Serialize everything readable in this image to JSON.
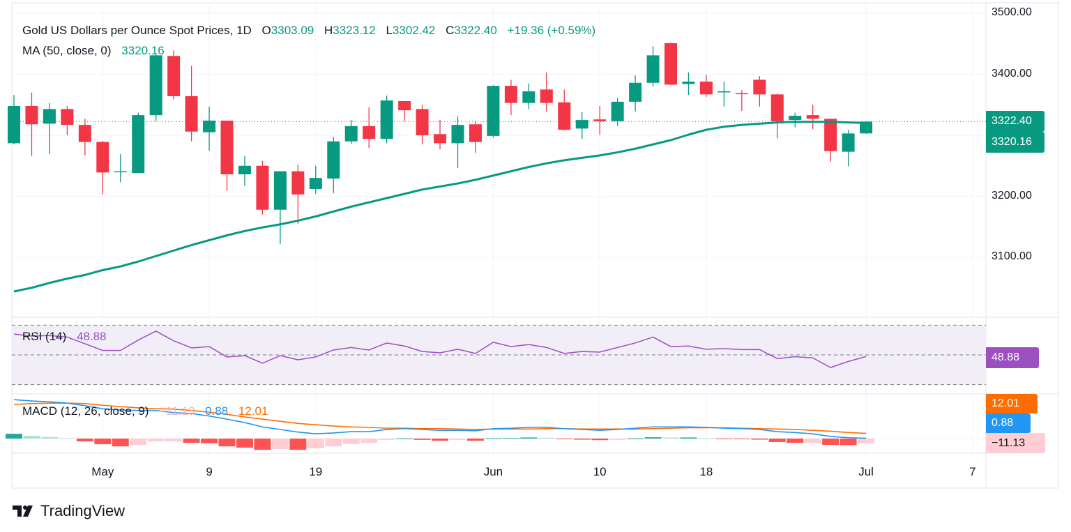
{
  "header": {
    "title": "Gold US Dollars per Ounce Spot Prices, 1D",
    "o_label": "O",
    "o_value": "3303.09",
    "h_label": "H",
    "h_value": "3323.12",
    "l_label": "L",
    "l_value": "3302.42",
    "c_label": "C",
    "c_value": "3322.40",
    "change": "+19.36 (+0.59%)",
    "ma_label": "MA (50, close, 0)",
    "ma_value": "3320.16"
  },
  "rsi": {
    "label": "RSI (14)",
    "value": "48.88"
  },
  "macd": {
    "label": "MACD (12, 26, close, 9)",
    "hist_value": "−11.13",
    "macd_value": "0.88",
    "signal_value": "12.01"
  },
  "price_axis": [
    "3500.00",
    "3400.00",
    "3200.00",
    "3100.00"
  ],
  "price_tags": {
    "last": "3322.40",
    "ma": "3320.16",
    "rsi": "48.88",
    "signal": "12.01",
    "macd": "0.88",
    "hist": "−11.13"
  },
  "colors": {
    "up": "#089981",
    "down": "#f23645",
    "ma": "#089981",
    "rsi": "#9c4fc0",
    "macd": "#2196f3",
    "signal": "#ff6d00"
  },
  "brand": "TradingView",
  "chart_data": {
    "type": "candlestick",
    "title": "Gold US Dollars per Ounce Spot Prices, 1D",
    "interval": "1D",
    "ylim": [
      3000,
      3500
    ],
    "y_ticks": [
      3100,
      3200,
      3300,
      3400,
      3500
    ],
    "grid": true,
    "x_ticks": [
      {
        "label": "May",
        "date": "May 1"
      },
      {
        "label": "9",
        "date": "May 9"
      },
      {
        "label": "19",
        "date": "May 19"
      },
      {
        "label": "Jun",
        "date": "Jun 2"
      },
      {
        "label": "10",
        "date": "Jun 10"
      },
      {
        "label": "18",
        "date": "Jun 18"
      },
      {
        "label": "Jul",
        "date": "Jul 1"
      },
      {
        "label": "7",
        "date": "Jul 7"
      }
    ],
    "dates": [
      "Apr 24",
      "Apr 25",
      "Apr 28",
      "Apr 29",
      "Apr 30",
      "May 1",
      "May 2",
      "May 5",
      "May 6",
      "May 7",
      "May 8",
      "May 9",
      "May 12",
      "May 13",
      "May 14",
      "May 15",
      "May 16",
      "May 19",
      "May 20",
      "May 21",
      "May 22",
      "May 23",
      "May 26",
      "May 27",
      "May 28",
      "May 29",
      "May 30",
      "Jun 2",
      "Jun 3",
      "Jun 4",
      "Jun 5",
      "Jun 6",
      "Jun 9",
      "Jun 10",
      "Jun 11",
      "Jun 12",
      "Jun 13",
      "Jun 16",
      "Jun 17",
      "Jun 18",
      "Jun 19",
      "Jun 20",
      "Jun 23",
      "Jun 24",
      "Jun 25",
      "Jun 26",
      "Jun 27",
      "Jun 30",
      "Jul 1"
    ],
    "ohlc_fields": [
      "open",
      "high",
      "low",
      "close"
    ],
    "ohlc": [
      [
        3287,
        3366,
        3285,
        3348
      ],
      [
        3348,
        3370,
        3266,
        3318
      ],
      [
        3319,
        3353,
        3269,
        3343
      ],
      [
        3343,
        3348,
        3300,
        3317
      ],
      [
        3317,
        3327,
        3267,
        3289
      ],
      [
        3289,
        3291,
        3203,
        3239
      ],
      [
        3240,
        3269,
        3223,
        3241
      ],
      [
        3238,
        3337,
        3238,
        3333
      ],
      [
        3333,
        3432,
        3323,
        3431
      ],
      [
        3430,
        3439,
        3359,
        3364
      ],
      [
        3364,
        3414,
        3290,
        3306
      ],
      [
        3305,
        3347,
        3275,
        3324
      ],
      [
        3324,
        3324,
        3209,
        3236
      ],
      [
        3236,
        3266,
        3217,
        3250
      ],
      [
        3250,
        3258,
        3170,
        3178
      ],
      [
        3178,
        3241,
        3122,
        3241
      ],
      [
        3241,
        3252,
        3155,
        3203
      ],
      [
        3212,
        3250,
        3204,
        3230
      ],
      [
        3229,
        3297,
        3205,
        3290
      ],
      [
        3290,
        3325,
        3286,
        3315
      ],
      [
        3315,
        3346,
        3279,
        3294
      ],
      [
        3294,
        3365,
        3287,
        3357
      ],
      [
        3356,
        3356,
        3323,
        3341
      ],
      [
        3343,
        3350,
        3285,
        3300
      ],
      [
        3302,
        3325,
        3277,
        3287
      ],
      [
        3287,
        3331,
        3246,
        3317
      ],
      [
        3318,
        3323,
        3271,
        3289
      ],
      [
        3299,
        3382,
        3296,
        3381
      ],
      [
        3381,
        3391,
        3333,
        3353
      ],
      [
        3353,
        3385,
        3343,
        3372
      ],
      [
        3375,
        3403,
        3339,
        3353
      ],
      [
        3354,
        3375,
        3308,
        3309
      ],
      [
        3311,
        3338,
        3294,
        3325
      ],
      [
        3326,
        3348,
        3301,
        3323
      ],
      [
        3323,
        3361,
        3315,
        3355
      ],
      [
        3355,
        3398,
        3339,
        3386
      ],
      [
        3386,
        3446,
        3380,
        3431
      ],
      [
        3451,
        3452,
        3382,
        3383
      ],
      [
        3384,
        3403,
        3366,
        3388
      ],
      [
        3388,
        3399,
        3363,
        3367
      ],
      [
        3371,
        3388,
        3347,
        3372
      ],
      [
        3369,
        3374,
        3340,
        3368
      ],
      [
        3391,
        3397,
        3347,
        3367
      ],
      [
        3367,
        3368,
        3295,
        3323
      ],
      [
        3325,
        3337,
        3313,
        3332
      ],
      [
        3333,
        3350,
        3310,
        3327
      ],
      [
        3327,
        3327,
        3257,
        3274
      ],
      [
        3273,
        3309,
        3249,
        3303
      ],
      [
        3303.09,
        3323.12,
        3302.42,
        3322.4
      ]
    ],
    "ma50": [
      3044,
      3050,
      3058,
      3065,
      3071,
      3079,
      3085,
      3093,
      3102,
      3111,
      3120,
      3128,
      3136,
      3143,
      3149,
      3154,
      3160,
      3167,
      3175,
      3183,
      3190,
      3197,
      3204,
      3211,
      3216,
      3221,
      3227,
      3234,
      3241,
      3248,
      3254,
      3259,
      3263,
      3267,
      3272,
      3278,
      3285,
      3292,
      3301,
      3309,
      3314,
      3317,
      3319,
      3321,
      3322,
      3322,
      3322,
      3321,
      3320.16
    ],
    "rsi": {
      "levels": [
        30,
        50,
        70
      ],
      "values": [
        64,
        62.7,
        63,
        62,
        57.5,
        53,
        53,
        60,
        66,
        59.5,
        54.7,
        55.6,
        48.6,
        49.5,
        44.4,
        49.5,
        46.7,
        48.6,
        53.3,
        55,
        53.3,
        58,
        56,
        52.3,
        51.4,
        53.8,
        51,
        58.5,
        55.6,
        57,
        55,
        51,
        52.3,
        51.9,
        55,
        58,
        62,
        55.6,
        56,
        53.8,
        54.2,
        53.6,
        53.6,
        47.5,
        48.8,
        48,
        41.5,
        45.6,
        48.88
      ]
    },
    "macd": {
      "macd": [
        90,
        87,
        85,
        82,
        76,
        69,
        66,
        65,
        65,
        60,
        58,
        52,
        45,
        37,
        27,
        21,
        15,
        11,
        13,
        16,
        16,
        21,
        23,
        21,
        19,
        19,
        18,
        23,
        24,
        26,
        26,
        23,
        21,
        19,
        21,
        24,
        27,
        27,
        27,
        26,
        24,
        23,
        21,
        16,
        14,
        11,
        5,
        2,
        0.88
      ],
      "signal": [
        79,
        81,
        82,
        82,
        81,
        77,
        74,
        71,
        69,
        68,
        65,
        61,
        56,
        50,
        45,
        40,
        35,
        32,
        29,
        27,
        26,
        24,
        24,
        23,
        23,
        22,
        21,
        22,
        22,
        22,
        23,
        23,
        22,
        22,
        22,
        22,
        23,
        24,
        25,
        25,
        25,
        24,
        23,
        22,
        21,
        19,
        17,
        14,
        12.01
      ],
      "histogram": [
        11,
        6.5,
        3.5,
        1,
        -6.5,
        -13,
        -18,
        -14.5,
        -6.5,
        -6.5,
        -10,
        -11,
        -18,
        -21,
        -26,
        -24,
        -26,
        -22.5,
        -18,
        -13,
        -10,
        -3,
        0.3,
        -3,
        -5,
        -3,
        -5,
        0.5,
        1,
        2.5,
        2,
        -0.5,
        -2.5,
        -3.5,
        -3,
        0.3,
        3,
        2.5,
        2.5,
        0.5,
        -1,
        -1.5,
        -2.5,
        -8,
        -10,
        -10,
        -14.5,
        -15,
        -11.13
      ]
    }
  }
}
